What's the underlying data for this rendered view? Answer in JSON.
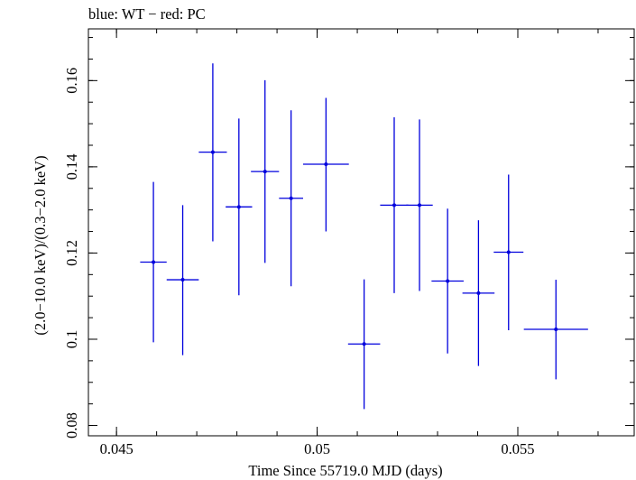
{
  "chart_data": {
    "type": "scatter",
    "title": "blue: WT − red: PC",
    "xlabel": "Time Since 55719.0 MJD (days)",
    "ylabel": "(2.0−10.0 keV)/(0.3−2.0 keV)",
    "xlim": [
      0.0443,
      0.0579
    ],
    "ylim": [
      0.0776,
      0.172
    ],
    "x_ticks": [
      {
        "value": 0.045,
        "label": "0.045"
      },
      {
        "value": 0.05,
        "label": "0.05"
      },
      {
        "value": 0.055,
        "label": "0.055"
      }
    ],
    "x_minor_step": 0.001,
    "y_ticks": [
      {
        "value": 0.08,
        "label": "0.08"
      },
      {
        "value": 0.1,
        "label": "0.1"
      },
      {
        "value": 0.12,
        "label": "0.12"
      },
      {
        "value": 0.14,
        "label": "0.14"
      },
      {
        "value": 0.16,
        "label": "0.16"
      }
    ],
    "y_minor_step": 0.005,
    "grid": false,
    "series": [
      {
        "color": "#0000dd",
        "points": [
          {
            "x": 0.04592,
            "xerr": 0.00033,
            "y": 0.1179,
            "ylo": 0.0993,
            "yhi": 0.1365
          },
          {
            "x": 0.04665,
            "xerr": 0.0004,
            "y": 0.1138,
            "ylo": 0.0963,
            "yhi": 0.1311
          },
          {
            "x": 0.0474,
            "xerr": 0.00035,
            "y": 0.1434,
            "ylo": 0.1227,
            "yhi": 0.164
          },
          {
            "x": 0.04805,
            "xerr": 0.00033,
            "y": 0.1307,
            "ylo": 0.1102,
            "yhi": 0.1512
          },
          {
            "x": 0.0487,
            "xerr": 0.00035,
            "y": 0.1389,
            "ylo": 0.1177,
            "yhi": 0.1601
          },
          {
            "x": 0.04935,
            "xerr": 0.0003,
            "y": 0.1327,
            "ylo": 0.1123,
            "yhi": 0.1531
          },
          {
            "x": 0.05022,
            "xerr": 0.00057,
            "y": 0.1406,
            "ylo": 0.125,
            "yhi": 0.156
          },
          {
            "x": 0.05117,
            "xerr": 0.0004,
            "y": 0.0989,
            "ylo": 0.0838,
            "yhi": 0.1139
          },
          {
            "x": 0.05192,
            "xerr": 0.00035,
            "y": 0.1311,
            "ylo": 0.1107,
            "yhi": 0.1515
          },
          {
            "x": 0.05255,
            "xerr": 0.00033,
            "y": 0.1311,
            "ylo": 0.1112,
            "yhi": 0.151
          },
          {
            "x": 0.05325,
            "xerr": 0.0004,
            "y": 0.1135,
            "ylo": 0.0967,
            "yhi": 0.1303
          },
          {
            "x": 0.05402,
            "xerr": 0.0004,
            "y": 0.1107,
            "ylo": 0.0938,
            "yhi": 0.1276
          },
          {
            "x": 0.05477,
            "xerr": 0.00037,
            "y": 0.1202,
            "ylo": 0.1021,
            "yhi": 0.1382
          },
          {
            "x": 0.05595,
            "xerr": 0.0008,
            "y": 0.1023,
            "ylo": 0.0907,
            "yhi": 0.1138
          }
        ]
      }
    ]
  }
}
